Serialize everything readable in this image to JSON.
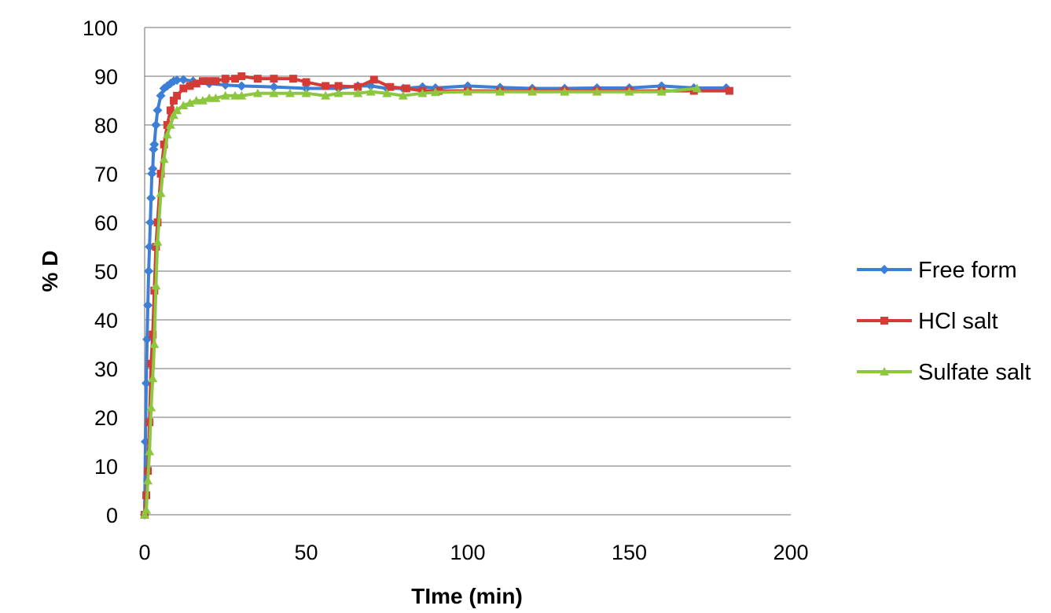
{
  "chart_data": {
    "type": "line",
    "title": "",
    "xlabel": "TIme (min)",
    "ylabel": "% D",
    "xlim": [
      0,
      200
    ],
    "ylim": [
      0,
      100
    ],
    "xticks": [
      0,
      50,
      100,
      150,
      200
    ],
    "yticks": [
      0,
      10,
      20,
      30,
      40,
      50,
      60,
      70,
      80,
      90,
      100
    ],
    "grid": "horizontal",
    "legend_position": "right",
    "series": [
      {
        "name": "Free form",
        "color": "#3d7fd6",
        "marker": "diamond",
        "points": [
          [
            0,
            0
          ],
          [
            0.25,
            15
          ],
          [
            0.5,
            27
          ],
          [
            0.75,
            36
          ],
          [
            1,
            43
          ],
          [
            1.25,
            50
          ],
          [
            1.5,
            55
          ],
          [
            1.75,
            60
          ],
          [
            2,
            65
          ],
          [
            2.25,
            70
          ],
          [
            2.5,
            71
          ],
          [
            2.75,
            75
          ],
          [
            3,
            76
          ],
          [
            3.5,
            80
          ],
          [
            4,
            83
          ],
          [
            5,
            86
          ],
          [
            6,
            87.5
          ],
          [
            7,
            88
          ],
          [
            8,
            88.5
          ],
          [
            9,
            89
          ],
          [
            10,
            89.2
          ],
          [
            12,
            89.3
          ],
          [
            15,
            89
          ],
          [
            20,
            88.5
          ],
          [
            25,
            88.2
          ],
          [
            30,
            88
          ],
          [
            40,
            87.8
          ],
          [
            50,
            87.5
          ],
          [
            60,
            87.5
          ],
          [
            66,
            88
          ],
          [
            70,
            88
          ],
          [
            75,
            87.5
          ],
          [
            80,
            87.5
          ],
          [
            86,
            87.8
          ],
          [
            90,
            87.6
          ],
          [
            100,
            88
          ],
          [
            110,
            87.7
          ],
          [
            120,
            87.5
          ],
          [
            130,
            87.5
          ],
          [
            140,
            87.6
          ],
          [
            150,
            87.6
          ],
          [
            160,
            88
          ],
          [
            170,
            87.6
          ],
          [
            180,
            87.6
          ]
        ]
      },
      {
        "name": "HCl salt",
        "color": "#d43b36",
        "marker": "square",
        "points": [
          [
            0,
            0
          ],
          [
            0.5,
            4
          ],
          [
            1,
            9
          ],
          [
            1.5,
            19
          ],
          [
            2,
            31
          ],
          [
            2.5,
            37
          ],
          [
            3,
            46
          ],
          [
            3.5,
            55
          ],
          [
            4,
            60
          ],
          [
            5,
            70
          ],
          [
            6,
            76
          ],
          [
            7,
            80
          ],
          [
            8,
            83
          ],
          [
            9,
            85
          ],
          [
            10,
            86
          ],
          [
            12,
            87.5
          ],
          [
            14,
            88
          ],
          [
            16,
            88.5
          ],
          [
            18,
            89
          ],
          [
            20,
            89
          ],
          [
            22,
            89
          ],
          [
            25,
            89.5
          ],
          [
            28,
            89.5
          ],
          [
            30,
            90
          ],
          [
            35,
            89.5
          ],
          [
            40,
            89.5
          ],
          [
            46,
            89.5
          ],
          [
            50,
            88.8
          ],
          [
            56,
            88
          ],
          [
            60,
            88
          ],
          [
            66,
            87.8
          ],
          [
            71,
            89.3
          ],
          [
            76,
            87.8
          ],
          [
            81,
            87.5
          ],
          [
            86,
            87
          ],
          [
            91,
            87
          ],
          [
            100,
            87
          ],
          [
            110,
            87
          ],
          [
            120,
            87
          ],
          [
            130,
            87
          ],
          [
            140,
            87
          ],
          [
            150,
            87
          ],
          [
            160,
            87
          ],
          [
            170,
            87
          ],
          [
            181,
            87
          ]
        ]
      },
      {
        "name": "Sulfate salt",
        "color": "#8dc63f",
        "marker": "triangle",
        "points": [
          [
            0,
            0
          ],
          [
            0.5,
            1
          ],
          [
            1,
            7
          ],
          [
            1.5,
            13
          ],
          [
            2,
            22
          ],
          [
            2.5,
            28
          ],
          [
            3,
            35
          ],
          [
            3.5,
            47
          ],
          [
            4,
            56
          ],
          [
            5,
            66
          ],
          [
            6,
            73
          ],
          [
            7,
            78
          ],
          [
            8,
            80
          ],
          [
            9,
            82
          ],
          [
            10,
            83
          ],
          [
            12,
            84
          ],
          [
            14,
            84.5
          ],
          [
            16,
            85
          ],
          [
            18,
            85
          ],
          [
            20,
            85.5
          ],
          [
            22,
            85.5
          ],
          [
            25,
            86
          ],
          [
            28,
            86
          ],
          [
            30,
            86
          ],
          [
            35,
            86.5
          ],
          [
            40,
            86.5
          ],
          [
            45,
            86.5
          ],
          [
            50,
            86.5
          ],
          [
            56,
            86
          ],
          [
            60,
            86.5
          ],
          [
            66,
            86.5
          ],
          [
            70,
            86.8
          ],
          [
            75,
            86.5
          ],
          [
            80,
            86
          ],
          [
            86,
            86.5
          ],
          [
            90,
            86.7
          ],
          [
            100,
            86.8
          ],
          [
            110,
            86.8
          ],
          [
            120,
            86.8
          ],
          [
            130,
            86.8
          ],
          [
            140,
            86.8
          ],
          [
            150,
            86.8
          ],
          [
            160,
            86.8
          ],
          [
            171,
            87.5
          ]
        ]
      }
    ]
  }
}
